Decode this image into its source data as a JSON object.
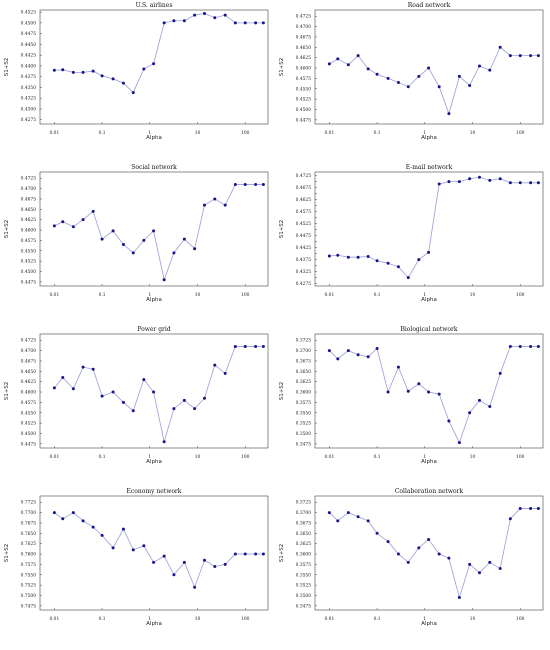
{
  "chart_data": [
    {
      "type": "line",
      "title": "U.S. airlines",
      "xlabel": "Alpha",
      "ylabel": "S1+S2",
      "x_scale": "log",
      "xlim": [
        0.005,
        300
      ],
      "x_ticks": [
        0.01,
        0.1,
        1,
        10,
        100
      ],
      "x_tick_labels": [
        "0.01",
        "0.1",
        "1",
        "10",
        "100"
      ],
      "ylim": [
        0.4265,
        0.453
      ],
      "y_ticks": [
        0.4275,
        0.43,
        0.4325,
        0.435,
        0.4375,
        0.44,
        0.4425,
        0.445,
        0.4475,
        0.45,
        0.4525
      ],
      "y_tick_labels": [
        "0.4275",
        "0.4300",
        "0.4325",
        "0.4350",
        "0.4375",
        "0.4400",
        "0.4425",
        "0.4450",
        "0.4475",
        "0.4500",
        "0.4525"
      ],
      "x": [
        0.01,
        0.015,
        0.025,
        0.04,
        0.065,
        0.1,
        0.17,
        0.28,
        0.45,
        0.75,
        1.2,
        2,
        3.2,
        5.3,
        8.7,
        14,
        23,
        38,
        62,
        100,
        165,
        240
      ],
      "values": [
        0.439,
        0.4391,
        0.4385,
        0.4385,
        0.4388,
        0.4377,
        0.437,
        0.436,
        0.4338,
        0.4393,
        0.4405,
        0.45,
        0.4505,
        0.4505,
        0.4518,
        0.4522,
        0.4512,
        0.4518,
        0.45,
        0.45,
        0.45,
        0.45
      ],
      "grid": false
    },
    {
      "type": "line",
      "title": "Road network",
      "xlabel": "Alpha",
      "ylabel": "S1+S2",
      "x_scale": "log",
      "xlim": [
        0.005,
        300
      ],
      "x_ticks": [
        0.01,
        0.1,
        1,
        10,
        100
      ],
      "x_tick_labels": [
        "0.01",
        "0.1",
        "1",
        "10",
        "100"
      ],
      "ylim": [
        0.4465,
        0.474
      ],
      "y_ticks": [
        0.4475,
        0.45,
        0.4525,
        0.455,
        0.4575,
        0.46,
        0.4625,
        0.465,
        0.4675,
        0.47,
        0.4725
      ],
      "y_tick_labels": [
        "0.4475",
        "0.4500",
        "0.4525",
        "0.4550",
        "0.4575",
        "0.4600",
        "0.4625",
        "0.4650",
        "0.4675",
        "0.4700",
        "0.4725"
      ],
      "x": [
        0.01,
        0.015,
        0.025,
        0.04,
        0.065,
        0.1,
        0.17,
        0.28,
        0.45,
        0.75,
        1.2,
        2,
        3.2,
        5.3,
        8.7,
        14,
        23,
        38,
        62,
        100,
        165,
        240
      ],
      "values": [
        0.461,
        0.4622,
        0.4608,
        0.463,
        0.4598,
        0.4585,
        0.4575,
        0.4565,
        0.4555,
        0.458,
        0.46,
        0.4555,
        0.449,
        0.458,
        0.4558,
        0.4605,
        0.4595,
        0.465,
        0.463,
        0.463,
        0.463,
        0.463
      ],
      "grid": false
    },
    {
      "type": "line",
      "title": "Social network",
      "xlabel": "Alpha",
      "ylabel": "S1+S2",
      "x_scale": "log",
      "xlim": [
        0.005,
        300
      ],
      "x_ticks": [
        0.01,
        0.1,
        1,
        10,
        100
      ],
      "x_tick_labels": [
        "0.01",
        "0.1",
        "1",
        "10",
        "100"
      ],
      "ylim": [
        0.4465,
        0.474
      ],
      "y_ticks": [
        0.4475,
        0.45,
        0.4525,
        0.455,
        0.4575,
        0.46,
        0.4625,
        0.465,
        0.4675,
        0.47,
        0.4725
      ],
      "y_tick_labels": [
        "0.4475",
        "0.4500",
        "0.4525",
        "0.4550",
        "0.4575",
        "0.4600",
        "0.4625",
        "0.4650",
        "0.4675",
        "0.4700",
        "0.4725"
      ],
      "x": [
        0.01,
        0.015,
        0.025,
        0.04,
        0.065,
        0.1,
        0.17,
        0.28,
        0.45,
        0.75,
        1.2,
        2,
        3.2,
        5.3,
        8.7,
        14,
        23,
        38,
        62,
        100,
        165,
        240
      ],
      "values": [
        0.461,
        0.462,
        0.4608,
        0.4625,
        0.4645,
        0.4578,
        0.4598,
        0.4565,
        0.4545,
        0.4575,
        0.4598,
        0.448,
        0.4545,
        0.4578,
        0.4555,
        0.466,
        0.4675,
        0.466,
        0.471,
        0.471,
        0.471,
        0.471
      ],
      "grid": false
    },
    {
      "type": "line",
      "title": "E-mail network",
      "xlabel": "Alpha",
      "ylabel": "S1+S2",
      "x_scale": "log",
      "xlim": [
        0.005,
        300
      ],
      "x_ticks": [
        0.01,
        0.1,
        1,
        10,
        100
      ],
      "x_tick_labels": [
        "0.01",
        "0.1",
        "1",
        "10",
        "100"
      ],
      "ylim": [
        0.4265,
        0.474
      ],
      "y_ticks": [
        0.4275,
        0.43,
        0.4325,
        0.435,
        0.4375,
        0.44,
        0.4425,
        0.445,
        0.4475,
        0.45,
        0.4525,
        0.455,
        0.4575,
        0.46,
        0.4625,
        0.465,
        0.4675,
        0.47,
        0.4725
      ],
      "y_tick_labels": [
        "0.4275",
        "",
        "0.4325",
        "",
        "0.4375",
        "",
        "0.4425",
        "",
        "0.4475",
        "",
        "0.4525",
        "",
        "0.4575",
        "",
        "0.4625",
        "",
        "0.4675",
        "",
        "0.4725"
      ],
      "x": [
        0.01,
        0.015,
        0.025,
        0.04,
        0.065,
        0.1,
        0.17,
        0.28,
        0.45,
        0.75,
        1.2,
        2,
        3.2,
        5.3,
        8.7,
        14,
        23,
        38,
        62,
        100,
        165,
        240
      ],
      "values": [
        0.439,
        0.4393,
        0.4385,
        0.4385,
        0.4388,
        0.437,
        0.436,
        0.4345,
        0.43,
        0.4375,
        0.4405,
        0.469,
        0.47,
        0.47,
        0.4712,
        0.4718,
        0.4705,
        0.4712,
        0.4695,
        0.4695,
        0.4695,
        0.4695
      ],
      "grid": false
    },
    {
      "type": "line",
      "title": "Power grid",
      "xlabel": "Alpha",
      "ylabel": "S1+S2",
      "x_scale": "log",
      "xlim": [
        0.005,
        300
      ],
      "x_ticks": [
        0.01,
        0.1,
        1,
        10,
        100
      ],
      "x_tick_labels": [
        "0.01",
        "0.1",
        "1",
        "10",
        "100"
      ],
      "ylim": [
        0.4465,
        0.474
      ],
      "y_ticks": [
        0.4475,
        0.45,
        0.4525,
        0.455,
        0.4575,
        0.46,
        0.4625,
        0.465,
        0.4675,
        0.47,
        0.4725
      ],
      "y_tick_labels": [
        "0.4475",
        "0.4500",
        "0.4525",
        "0.4550",
        "0.4575",
        "0.4600",
        "0.4625",
        "0.4650",
        "0.4675",
        "0.4700",
        "0.4725"
      ],
      "x": [
        0.01,
        0.015,
        0.025,
        0.04,
        0.065,
        0.1,
        0.17,
        0.28,
        0.45,
        0.75,
        1.2,
        2,
        3.2,
        5.3,
        8.7,
        14,
        23,
        38,
        62,
        100,
        165,
        240
      ],
      "values": [
        0.461,
        0.4635,
        0.4608,
        0.466,
        0.4655,
        0.459,
        0.46,
        0.4575,
        0.4555,
        0.463,
        0.46,
        0.448,
        0.456,
        0.458,
        0.456,
        0.4585,
        0.4665,
        0.4645,
        0.471,
        0.471,
        0.471,
        0.471
      ],
      "grid": false
    },
    {
      "type": "line",
      "title": "Biological network",
      "xlabel": "Alpha",
      "ylabel": "S1+S2",
      "x_scale": "log",
      "xlim": [
        0.005,
        300
      ],
      "x_ticks": [
        0.01,
        0.1,
        1,
        10,
        100
      ],
      "x_tick_labels": [
        "0.01",
        "0.1",
        "1",
        "10",
        "100"
      ],
      "ylim": [
        0.3465,
        0.374
      ],
      "y_ticks": [
        0.3475,
        0.35,
        0.3525,
        0.355,
        0.3575,
        0.36,
        0.3625,
        0.365,
        0.3675,
        0.37,
        0.3725
      ],
      "y_tick_labels": [
        "0.3475",
        "0.3500",
        "0.3525",
        "0.3550",
        "0.3575",
        "0.3600",
        "0.3625",
        "0.3650",
        "0.3675",
        "0.3700",
        "0.3725"
      ],
      "x": [
        0.01,
        0.015,
        0.025,
        0.04,
        0.065,
        0.1,
        0.17,
        0.28,
        0.45,
        0.75,
        1.2,
        2,
        3.2,
        5.3,
        8.7,
        14,
        23,
        38,
        62,
        100,
        165,
        240
      ],
      "values": [
        0.37,
        0.368,
        0.37,
        0.369,
        0.3685,
        0.3705,
        0.36,
        0.366,
        0.3602,
        0.362,
        0.36,
        0.3595,
        0.353,
        0.3478,
        0.355,
        0.358,
        0.3565,
        0.3645,
        0.371,
        0.371,
        0.371,
        0.371
      ],
      "grid": false
    },
    {
      "type": "line",
      "title": "Economy network",
      "xlabel": "Alpha",
      "ylabel": "S1+S2",
      "x_scale": "log",
      "xlim": [
        0.005,
        300
      ],
      "x_ticks": [
        0.01,
        0.1,
        1,
        10,
        100
      ],
      "x_tick_labels": [
        "0.01",
        "0.1",
        "1",
        "10",
        "100"
      ],
      "ylim": [
        0.7465,
        0.774
      ],
      "y_ticks": [
        0.7475,
        0.75,
        0.7525,
        0.755,
        0.7575,
        0.76,
        0.7625,
        0.765,
        0.7675,
        0.77,
        0.7725
      ],
      "y_tick_labels": [
        "0.7475",
        "0.7500",
        "0.7525",
        "0.7550",
        "0.7575",
        "0.7600",
        "0.7625",
        "0.7650",
        "0.7675",
        "0.7700",
        "0.7725"
      ],
      "x": [
        0.01,
        0.015,
        0.025,
        0.04,
        0.065,
        0.1,
        0.17,
        0.28,
        0.45,
        0.75,
        1.2,
        2,
        3.2,
        5.3,
        8.7,
        14,
        23,
        38,
        62,
        100,
        165,
        240
      ],
      "values": [
        0.77,
        0.7685,
        0.77,
        0.768,
        0.7665,
        0.7645,
        0.7615,
        0.766,
        0.761,
        0.762,
        0.758,
        0.7595,
        0.755,
        0.758,
        0.752,
        0.7585,
        0.757,
        0.7575,
        0.76,
        0.76,
        0.76,
        0.76
      ],
      "grid": false
    },
    {
      "type": "line",
      "title": "Collaboration network",
      "xlabel": "Alpha",
      "ylabel": "S1+S2",
      "x_scale": "log",
      "xlim": [
        0.005,
        300
      ],
      "x_ticks": [
        0.01,
        0.1,
        1,
        10,
        100
      ],
      "x_tick_labels": [
        "0.01",
        "0.1",
        "1",
        "10",
        "100"
      ],
      "ylim": [
        0.3465,
        0.374
      ],
      "y_ticks": [
        0.3475,
        0.35,
        0.3525,
        0.355,
        0.3575,
        0.36,
        0.3625,
        0.365,
        0.3675,
        0.37,
        0.3725
      ],
      "y_tick_labels": [
        "0.3475",
        "0.3500",
        "0.3525",
        "0.3550",
        "0.3575",
        "0.3600",
        "0.3625",
        "0.3650",
        "0.3675",
        "0.3700",
        "0.3725"
      ],
      "x": [
        0.01,
        0.015,
        0.025,
        0.04,
        0.065,
        0.1,
        0.17,
        0.28,
        0.45,
        0.75,
        1.2,
        2,
        3.2,
        5.3,
        8.7,
        14,
        23,
        38,
        62,
        100,
        165,
        240
      ],
      "values": [
        0.37,
        0.368,
        0.37,
        0.369,
        0.368,
        0.365,
        0.363,
        0.36,
        0.358,
        0.3615,
        0.3635,
        0.36,
        0.359,
        0.3495,
        0.3575,
        0.3555,
        0.358,
        0.3565,
        0.3685,
        0.371,
        0.371,
        0.371
      ],
      "grid": false
    }
  ]
}
